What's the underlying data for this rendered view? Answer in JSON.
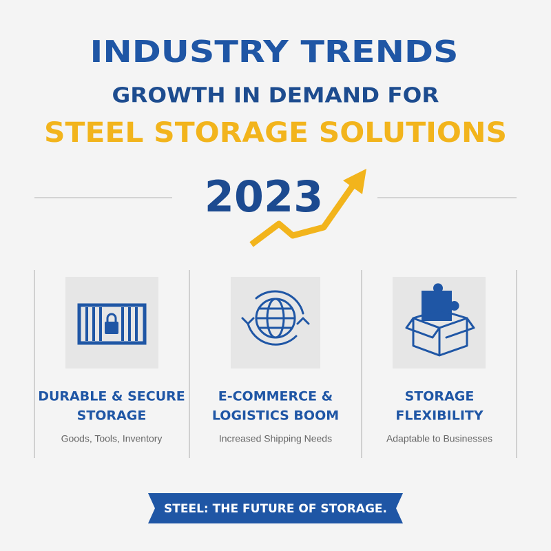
{
  "header": {
    "title": "INDUSTRY TRENDS",
    "subtitle": "GROWTH IN DEMAND FOR",
    "highlight": "STEEL STORAGE SOLUTIONS",
    "year": "2023"
  },
  "columns": [
    {
      "title": [
        "DURABLE & SECURE",
        "STORAGE"
      ],
      "caption": "Goods, Tools, Inventory"
    },
    {
      "title": [
        "E-COMMERCE &",
        "LOGISTICS BOOM"
      ],
      "caption": "Increased Shipping Needs"
    },
    {
      "title": [
        "STORAGE",
        "FLEXIBILITY"
      ],
      "caption": "Adaptable to Businesses"
    }
  ],
  "banner": "STEEL: THE FUTURE OF STORAGE."
}
